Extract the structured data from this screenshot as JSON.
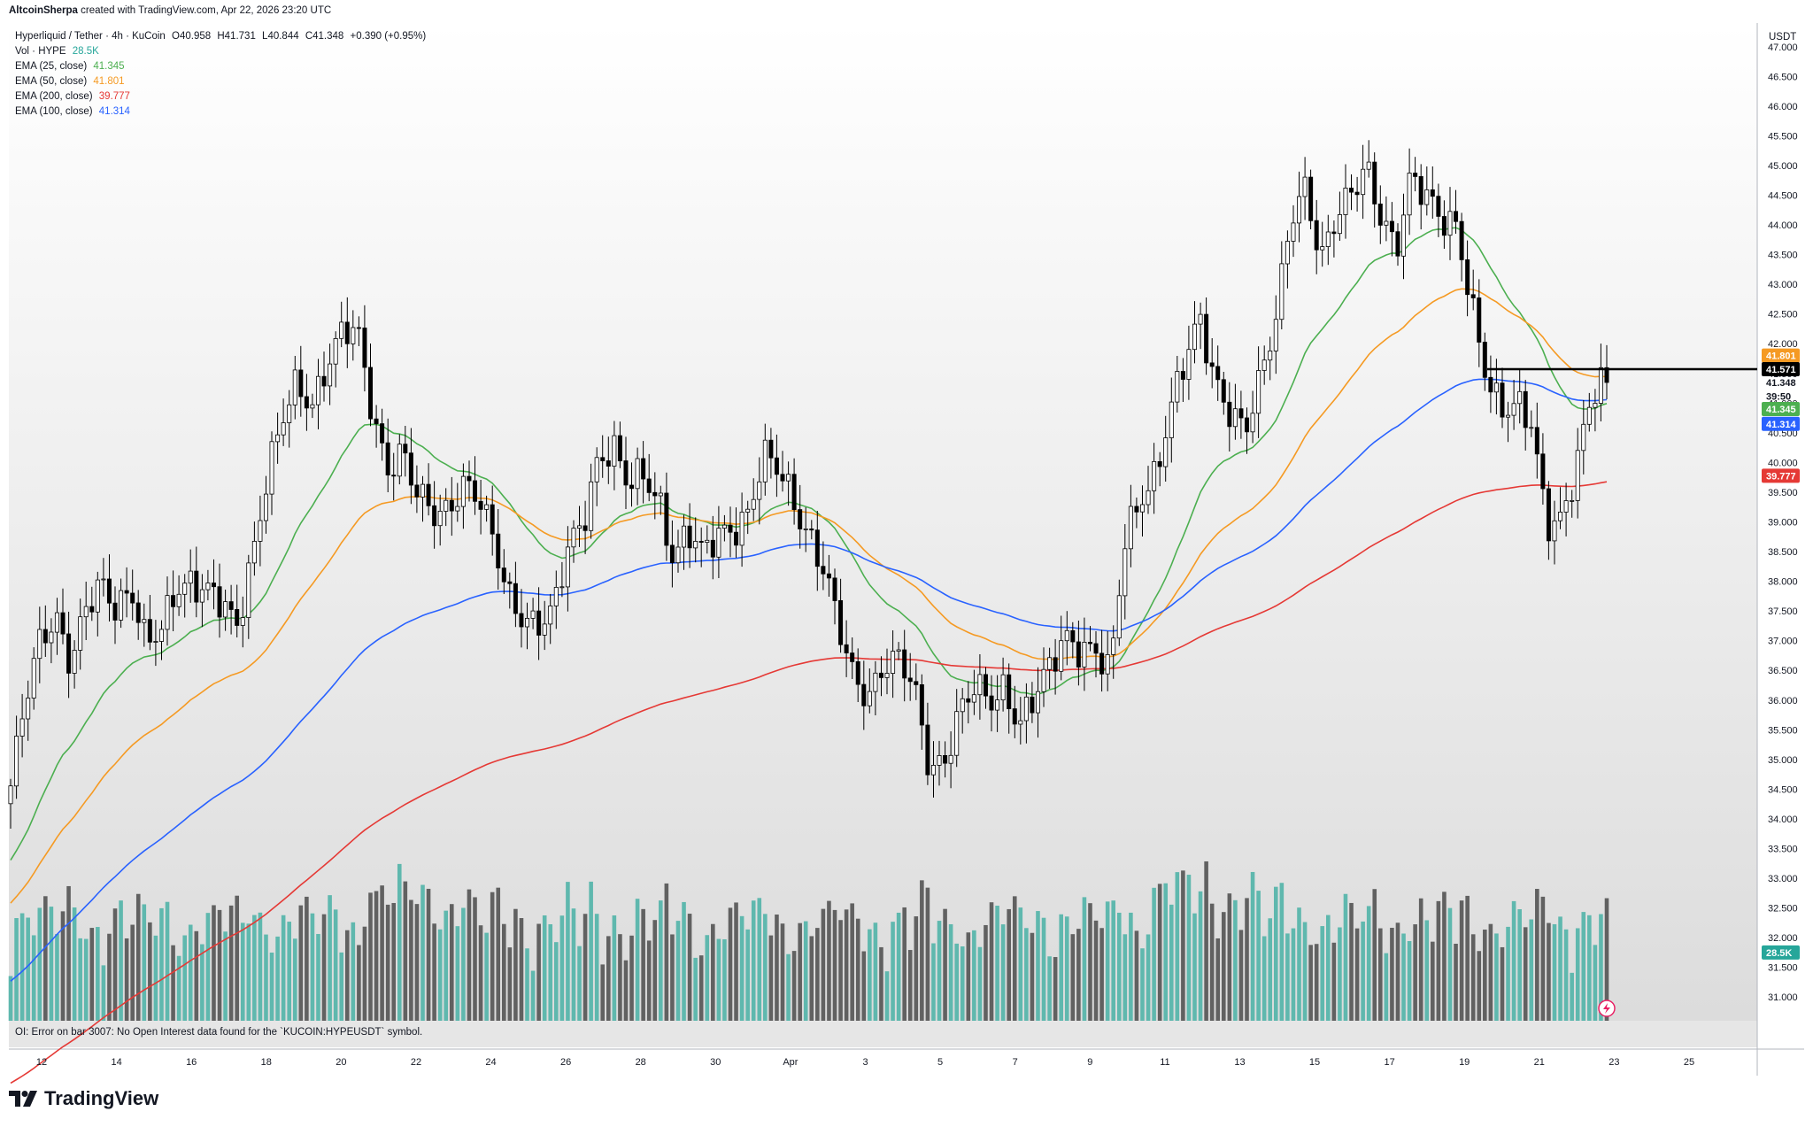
{
  "credit": {
    "author": "AltcoinSherpa",
    "text": "created with TradingView.com, Apr 22, 2026 23:20 UTC"
  },
  "branding": {
    "logo_text": "TradingView"
  },
  "legend": {
    "symbol": "Hyperliquid / Tether · 4h · KuCoin",
    "open": "O40.958",
    "high": "H41.731",
    "low": "L40.844",
    "close": "C41.348",
    "change": "+0.390 (+0.95%)",
    "vol_label": "Vol · HYPE",
    "vol_value": "28.5K",
    "ema25_label": "EMA (25, close)",
    "ema25_value": "41.345",
    "ema50_label": "EMA (50, close)",
    "ema50_value": "41.801",
    "ema200_label": "EMA (200, close)",
    "ema200_value": "39.777",
    "ema100_label": "EMA (100, close)",
    "ema100_value": "41.314"
  },
  "price_axis": {
    "unit": "USDT",
    "ticks": [
      "47.000",
      "46.500",
      "46.000",
      "45.500",
      "45.000",
      "44.500",
      "44.000",
      "43.500",
      "43.000",
      "42.500",
      "42.000",
      "41.500",
      "41.000",
      "40.500",
      "40.000",
      "39.500",
      "39.000",
      "38.500",
      "38.000",
      "37.500",
      "37.000",
      "36.500",
      "36.000",
      "35.500",
      "35.000",
      "34.500",
      "34.000",
      "33.500",
      "33.000",
      "32.500",
      "32.000",
      "31.500",
      "31.000"
    ],
    "badges": [
      {
        "text": "41.801",
        "value": 41.801,
        "color": "#f59a23"
      },
      {
        "text": "41.571",
        "value": 41.571,
        "color": "#000000"
      },
      {
        "text": "41.348",
        "value": 41.348,
        "color": "none"
      },
      {
        "text": "39:50",
        "value": 41.12,
        "color": "none"
      },
      {
        "text": "41.345",
        "value": 40.9,
        "color": "#4caf50"
      },
      {
        "text": "41.314",
        "value": 40.65,
        "color": "#2962ff"
      },
      {
        "text": "39.777",
        "value": 39.777,
        "color": "#e53935"
      },
      {
        "text": "28.5K",
        "value": 31.75,
        "color": "#26a69a"
      }
    ]
  },
  "time_axis": {
    "labels": [
      "12",
      "14",
      "16",
      "18",
      "20",
      "22",
      "24",
      "26",
      "28",
      "30",
      "Apr",
      "3",
      "5",
      "7",
      "9",
      "11",
      "13",
      "15",
      "17",
      "19",
      "21",
      "23",
      "25"
    ]
  },
  "oi_error": "OI: Error on bar 3007: No Open Interest data found for the `KUCOIN:HYPEUSDT` symbol.",
  "colors": {
    "ema25": "#4caf50",
    "ema50": "#f59a23",
    "ema100": "#2962ff",
    "ema200": "#e53935",
    "candle": "#000000",
    "vol_up": "#5fb8ae",
    "vol_down": "#616161"
  },
  "chart_data": {
    "type": "candlestick",
    "title": "",
    "interval": "4h",
    "y_range": [
      30.6,
      47.4
    ],
    "x_label_days": [
      "12",
      "14",
      "16",
      "18",
      "20",
      "22",
      "24",
      "26",
      "28",
      "30",
      "Apr",
      "3",
      "5",
      "7",
      "9",
      "11",
      "13",
      "15",
      "17",
      "19",
      "21",
      "23",
      "25"
    ],
    "horizontal_level": 41.571,
    "close_series_approx": [
      34.4,
      36.0,
      37.2,
      37.5,
      36.5,
      37.4,
      38.0,
      37.7,
      37.9,
      36.8,
      37.1,
      38.0,
      38.1,
      37.8,
      37.5,
      37.2,
      38.5,
      39.8,
      40.6,
      41.2,
      41.0,
      41.8,
      42.2,
      42.1,
      40.8,
      40.0,
      40.3,
      39.4,
      39.0,
      39.2,
      39.8,
      39.5,
      38.6,
      37.7,
      37.5,
      37.4,
      37.4,
      38.4,
      39.0,
      40.2,
      40.3,
      39.5,
      39.7,
      39.5,
      38.5,
      38.8,
      38.3,
      38.8,
      39.0,
      39.2,
      40.0,
      39.8,
      39.4,
      38.9,
      38.2,
      37.1,
      36.3,
      36.2,
      36.7,
      36.6,
      36.1,
      34.9,
      35.1,
      35.8,
      36.1,
      35.9,
      36.3,
      35.7,
      36.0,
      36.4,
      37.1,
      37.0,
      36.9,
      36.3,
      38.6,
      39.5,
      39.9,
      40.8,
      41.6,
      42.4,
      41.5,
      40.9,
      40.4,
      41.3,
      42.5,
      44.3,
      44.6,
      43.2,
      44.1,
      44.7,
      45.1,
      44.0,
      43.4,
      44.9,
      44.7,
      44.1,
      43.8,
      42.6,
      41.6,
      41.0,
      40.9,
      40.5,
      39.0,
      39.2,
      40.0,
      41.0,
      41.348
    ],
    "emas": [
      {
        "name": "EMA (25, close)",
        "last": 41.345
      },
      {
        "name": "EMA (50, close)",
        "last": 41.801
      },
      {
        "name": "EMA (100, close)",
        "last": 41.314
      },
      {
        "name": "EMA (200, close)",
        "last": 39.777
      }
    ],
    "volume_last": "28.5K"
  }
}
